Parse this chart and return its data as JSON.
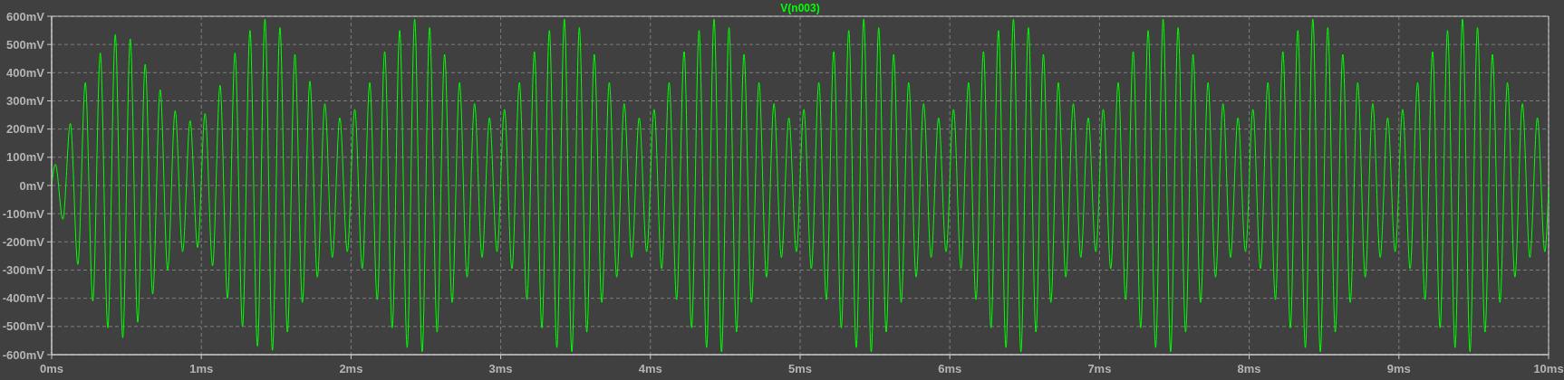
{
  "chart_data": {
    "type": "line",
    "x": [
      0,
      0.025,
      0.075,
      0.125,
      0.175,
      0.225,
      0.275,
      0.325,
      0.375,
      0.425,
      0.475,
      0.525,
      0.575,
      0.625,
      0.675,
      0.725,
      0.775,
      0.825,
      0.875,
      0.925,
      0.975,
      1.025,
      1.075,
      1.125,
      1.175,
      1.225,
      1.275,
      1.325,
      1.375,
      1.425,
      1.475,
      1.525,
      1.575,
      1.625,
      1.675,
      1.725,
      1.775,
      1.825,
      1.875,
      1.925,
      1.975,
      2.025,
      2.075,
      2.125,
      2.175,
      2.225,
      2.275,
      2.325,
      2.375,
      2.425,
      2.475,
      2.525,
      2.575,
      2.625,
      2.675,
      2.725,
      2.775,
      2.825,
      2.875,
      2.925,
      2.975,
      3.025,
      3.075,
      3.125,
      3.175,
      3.225,
      3.275,
      3.325,
      3.375,
      3.425,
      3.475,
      3.525,
      3.575,
      3.625,
      3.675,
      3.725,
      3.775,
      3.825,
      3.875,
      3.925,
      3.975,
      4.025,
      4.075,
      4.125,
      4.175,
      4.225,
      4.275,
      4.325,
      4.375,
      4.425,
      4.475,
      4.525,
      4.575,
      4.625,
      4.675,
      4.725,
      4.775,
      4.825,
      4.875,
      4.925,
      4.975,
      5.025,
      5.075,
      5.125,
      5.175,
      5.225,
      5.275,
      5.325,
      5.375,
      5.425,
      5.475,
      5.525,
      5.575,
      5.625,
      5.675,
      5.725,
      5.775,
      5.825,
      5.875,
      5.925,
      5.975,
      6.025,
      6.075,
      6.125,
      6.175,
      6.225,
      6.275,
      6.325,
      6.375,
      6.425,
      6.475,
      6.525,
      6.575,
      6.625,
      6.675,
      6.725,
      6.775,
      6.825,
      6.875,
      6.925,
      6.975,
      7.025,
      7.075,
      7.125,
      7.175,
      7.225,
      7.275,
      7.325,
      7.375,
      7.425,
      7.475,
      7.525,
      7.575,
      7.625,
      7.675,
      7.725,
      7.775,
      7.825,
      7.875,
      7.925,
      7.975,
      8.025,
      8.075,
      8.125,
      8.175,
      8.225,
      8.275,
      8.325,
      8.375,
      8.425,
      8.475,
      8.525,
      8.575,
      8.625,
      8.675,
      8.725,
      8.775,
      8.825,
      8.875,
      8.925,
      8.975,
      9.025,
      9.075,
      9.125,
      9.175,
      9.225,
      9.275,
      9.325,
      9.375,
      9.425,
      9.475,
      9.525,
      9.575,
      9.625,
      9.675,
      9.725,
      9.775,
      9.825,
      9.875,
      9.925,
      9.975,
      10
    ],
    "series": [
      {
        "name": "V(n003)",
        "color": "#00ff00",
        "values": [
          0,
          75,
          -120,
          220,
          -280,
          365,
          -410,
          470,
          -505,
          535,
          -540,
          520,
          -485,
          430,
          -385,
          340,
          -300,
          265,
          -235,
          230,
          -220,
          255,
          -285,
          355,
          -400,
          470,
          -500,
          550,
          -570,
          590,
          -585,
          560,
          -520,
          465,
          -415,
          370,
          -325,
          290,
          -255,
          240,
          -235,
          270,
          -295,
          365,
          -405,
          475,
          -505,
          550,
          -575,
          590,
          -590,
          560,
          -520,
          465,
          -415,
          365,
          -325,
          290,
          -255,
          240,
          -235,
          270,
          -295,
          365,
          -405,
          475,
          -505,
          550,
          -575,
          590,
          -590,
          560,
          -520,
          465,
          -415,
          365,
          -325,
          290,
          -255,
          240,
          -235,
          270,
          -295,
          365,
          -405,
          475,
          -505,
          550,
          -575,
          590,
          -590,
          560,
          -520,
          465,
          -415,
          365,
          -325,
          290,
          -255,
          240,
          -235,
          270,
          -295,
          365,
          -405,
          475,
          -505,
          550,
          -575,
          590,
          -590,
          560,
          -520,
          465,
          -415,
          365,
          -325,
          290,
          -255,
          240,
          -235,
          270,
          -295,
          365,
          -405,
          475,
          -505,
          550,
          -575,
          590,
          -590,
          560,
          -520,
          465,
          -415,
          365,
          -325,
          290,
          -255,
          240,
          -235,
          270,
          -295,
          365,
          -405,
          475,
          -505,
          550,
          -575,
          590,
          -590,
          560,
          -520,
          465,
          -415,
          365,
          -325,
          290,
          -255,
          240,
          -235,
          270,
          -295,
          365,
          -405,
          475,
          -505,
          550,
          -575,
          590,
          -590,
          560,
          -520,
          465,
          -415,
          365,
          -325,
          290,
          -255,
          240,
          -235,
          270,
          -295,
          365,
          -405,
          475,
          -505,
          550,
          -575,
          590,
          -590,
          560,
          -520,
          465,
          -415,
          365,
          -325,
          290,
          -255,
          240,
          -235,
          0
        ]
      }
    ],
    "xlim": [
      0,
      10
    ],
    "xticks": [
      {
        "value": 0,
        "label": "0ms"
      },
      {
        "value": 1,
        "label": "1ms"
      },
      {
        "value": 2,
        "label": "2ms"
      },
      {
        "value": 3,
        "label": "3ms"
      },
      {
        "value": 4,
        "label": "4ms"
      },
      {
        "value": 5,
        "label": "5ms"
      },
      {
        "value": 6,
        "label": "6ms"
      },
      {
        "value": 7,
        "label": "7ms"
      },
      {
        "value": 8,
        "label": "8ms"
      },
      {
        "value": 9,
        "label": "9ms"
      },
      {
        "value": 10,
        "label": "10ms"
      }
    ],
    "ylim": [
      -600,
      600
    ],
    "yticks": [
      {
        "value": -600,
        "label": "-600mV"
      },
      {
        "value": -500,
        "label": "-500mV"
      },
      {
        "value": -400,
        "label": "-400mV"
      },
      {
        "value": -300,
        "label": "-300mV"
      },
      {
        "value": -200,
        "label": "-200mV"
      },
      {
        "value": -100,
        "label": "-100mV"
      },
      {
        "value": 0,
        "label": "0mV"
      },
      {
        "value": 100,
        "label": "100mV"
      },
      {
        "value": 200,
        "label": "200mV"
      },
      {
        "value": 300,
        "label": "300mV"
      },
      {
        "value": 400,
        "label": "400mV"
      },
      {
        "value": 500,
        "label": "500mV"
      },
      {
        "value": 600,
        "label": "600mV"
      }
    ],
    "grid": true,
    "legend": "top"
  }
}
